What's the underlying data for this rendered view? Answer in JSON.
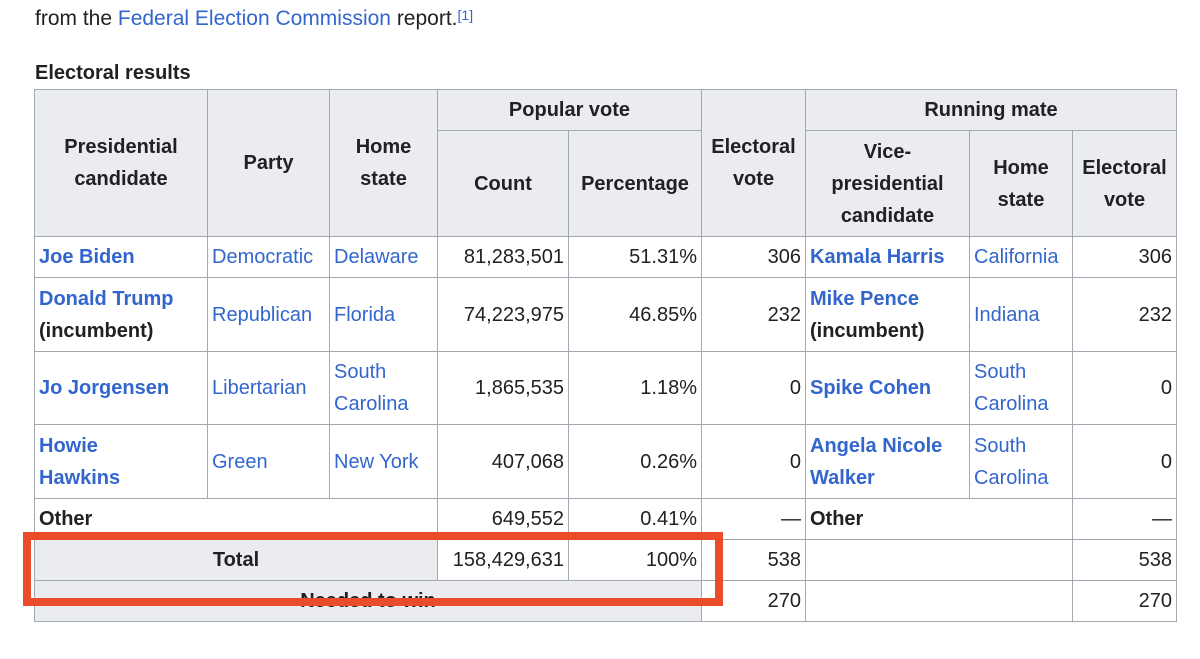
{
  "intro": {
    "prefix": "from the ",
    "link": "Federal Election Commission",
    "suffix": " report.",
    "ref": "[1]"
  },
  "caption": "Electoral results",
  "headers": {
    "candidate_line1": "Presidential",
    "candidate_line2": "candidate",
    "party": "Party",
    "home_line1": "Home",
    "home_line2": "state",
    "popular_vote": "Popular vote",
    "count": "Count",
    "percentage": "Percentage",
    "electoral_line1": "Electoral",
    "electoral_line2": "vote",
    "running_mate": "Running mate",
    "vp_line1": "Vice-",
    "vp_line2": "presidential",
    "vp_line3": "candidate",
    "rm_home_line1": "Home",
    "rm_home_line2": "state",
    "rm_electoral_line1": "Electoral",
    "rm_electoral_line2": "vote"
  },
  "rows": [
    {
      "name1": "Joe Biden",
      "name2": "",
      "party": "Democratic",
      "state1": "Delaware",
      "state2": "",
      "count": "81,283,501",
      "pct": "51.31%",
      "ev": "306",
      "vp1": "Kamala Harris",
      "vp2": "",
      "vpstate1": "California",
      "vpstate2": "",
      "vpev": "306"
    },
    {
      "name1": "Donald Trump",
      "name2": "(incumbent)",
      "party": "Republican",
      "state1": "Florida",
      "state2": "",
      "count": "74,223,975",
      "pct": "46.85%",
      "ev": "232",
      "vp1": "Mike Pence",
      "vp2": "(incumbent)",
      "vpstate1": "Indiana",
      "vpstate2": "",
      "vpev": "232"
    },
    {
      "name1": "Jo Jorgensen",
      "name2": "",
      "party": "Libertarian",
      "state1": "South",
      "state2": "Carolina",
      "count": "1,865,535",
      "pct": "1.18%",
      "ev": "0",
      "vp1": "Spike Cohen",
      "vp2": "",
      "vpstate1": "South",
      "vpstate2": "Carolina",
      "vpev": "0"
    },
    {
      "name1": "Howie",
      "name2": "Hawkins",
      "party": "Green",
      "state1": "New York",
      "state2": "",
      "count": "407,068",
      "pct": "0.26%",
      "ev": "0",
      "vp1": "Angela Nicole",
      "vp2": "Walker",
      "vpstate1": "South",
      "vpstate2": "Carolina",
      "vpev": "0"
    }
  ],
  "other": {
    "label": "Other",
    "count": "649,552",
    "pct": "0.41%",
    "ev": "—",
    "vp": "Other",
    "vpev": "—"
  },
  "total": {
    "label": "Total",
    "count": "158,429,631",
    "pct": "100%",
    "ev": "538",
    "vpev": "538"
  },
  "needed": {
    "label": "Needed to win",
    "ev": "270",
    "vpev": "270"
  },
  "colors": {
    "link": "#3366cc",
    "header_bg": "#eaecf0",
    "border": "#a2a9b1",
    "highlight": "#ea4c2a"
  }
}
